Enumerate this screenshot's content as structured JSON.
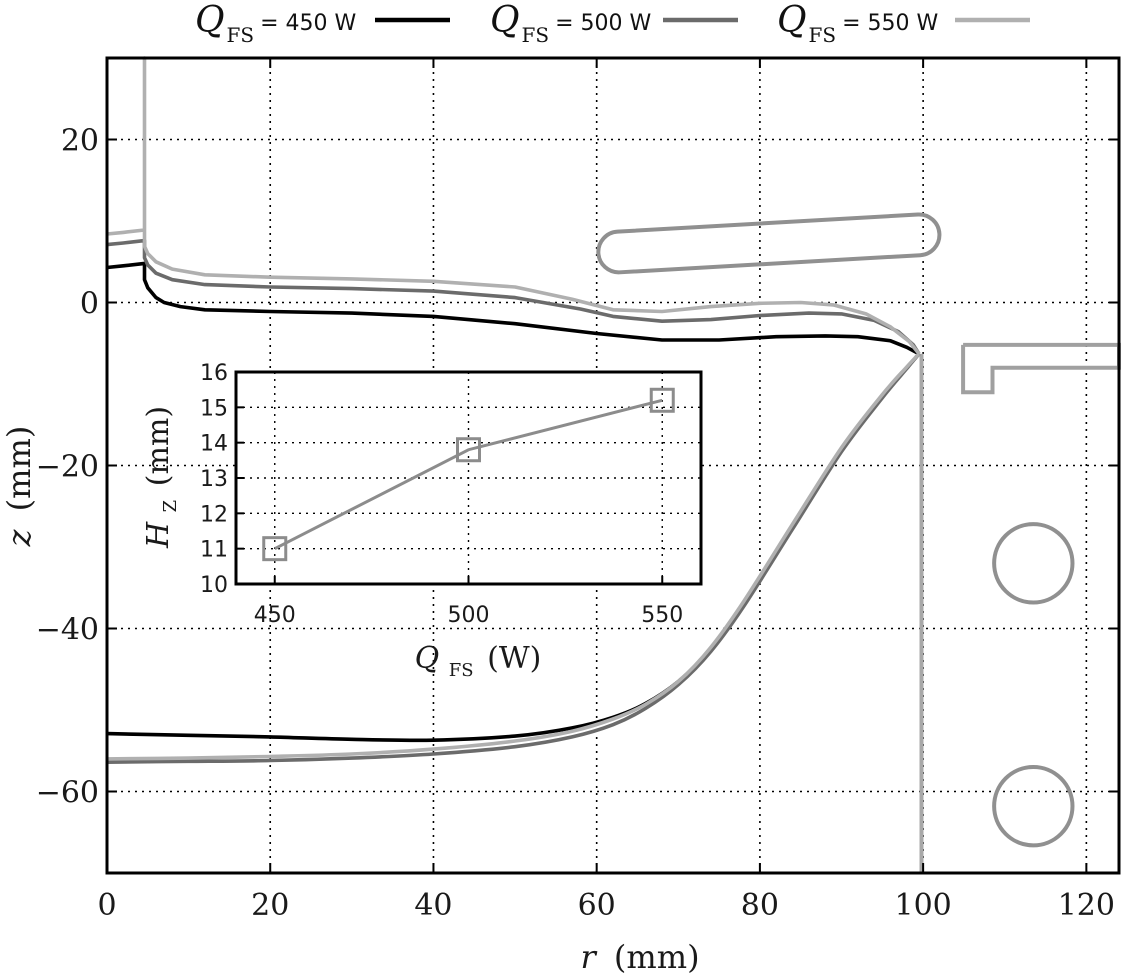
{
  "chart_data": [
    {
      "type": "line",
      "legend_position": "top",
      "xlabel_symbol": "r",
      "xlabel_unit": "(mm)",
      "ylabel_symbol": "z",
      "ylabel_unit": "(mm)",
      "xlim": [
        0,
        124
      ],
      "ylim": [
        -70,
        30
      ],
      "xticks": [
        0,
        20,
        40,
        60,
        80,
        100,
        120
      ],
      "yticks": [
        -60,
        -40,
        -20,
        0,
        20
      ],
      "ytick_labels": [
        "−60",
        "−40",
        "−20",
        "0",
        "20"
      ],
      "grid": true,
      "series": [
        {
          "name": "Q_FS = 450 W",
          "legend_symbol": "Q",
          "legend_subscript": "FS",
          "legend_value": "= 450 W",
          "color": "#000000",
          "free_surface": [
            [
              0,
              4.3
            ],
            [
              2,
              4.5
            ],
            [
              4.6,
              4.8
            ],
            [
              4.6,
              2.8
            ],
            [
              5,
              1.8
            ],
            [
              6,
              0.6
            ],
            [
              7,
              0
            ],
            [
              9,
              -0.5
            ],
            [
              12,
              -0.9
            ],
            [
              20,
              -1.1
            ],
            [
              30,
              -1.3
            ],
            [
              40,
              -1.7
            ],
            [
              50,
              -2.6
            ],
            [
              60,
              -3.8
            ],
            [
              68,
              -4.6
            ],
            [
              75,
              -4.6
            ],
            [
              82,
              -4.2
            ],
            [
              88,
              -4.1
            ],
            [
              92,
              -4.2
            ],
            [
              96,
              -4.7
            ],
            [
              98,
              -5.5
            ],
            [
              99.5,
              -6.3
            ]
          ],
          "interface": [
            [
              0,
              -52.9
            ],
            [
              10,
              -53.1
            ],
            [
              20,
              -53.3
            ],
            [
              30,
              -53.6
            ],
            [
              40,
              -53.7
            ],
            [
              50,
              -53.2
            ],
            [
              57,
              -52.2
            ],
            [
              62,
              -50.9
            ],
            [
              66,
              -49.2
            ],
            [
              70,
              -46.5
            ],
            [
              74,
              -42.5
            ],
            [
              78,
              -37
            ],
            [
              84,
              -27.5
            ],
            [
              90,
              -18
            ],
            [
              95,
              -11.5
            ],
            [
              98,
              -8
            ],
            [
              99.5,
              -6.3
            ]
          ]
        },
        {
          "name": "Q_FS = 500 W",
          "legend_symbol": "Q",
          "legend_subscript": "FS",
          "legend_value": "= 500 W",
          "color": "#6b6b6b",
          "free_surface": [
            [
              0,
              7.1
            ],
            [
              2,
              7.3
            ],
            [
              4.6,
              7.6
            ],
            [
              4.6,
              5.5
            ],
            [
              5,
              4.6
            ],
            [
              6,
              3.6
            ],
            [
              8,
              2.8
            ],
            [
              12,
              2.2
            ],
            [
              20,
              1.9
            ],
            [
              30,
              1.7
            ],
            [
              40,
              1.4
            ],
            [
              50,
              0.6
            ],
            [
              58,
              -0.8
            ],
            [
              62,
              -1.7
            ],
            [
              68,
              -2.3
            ],
            [
              74,
              -2.1
            ],
            [
              80,
              -1.6
            ],
            [
              86,
              -1.3
            ],
            [
              90,
              -1.4
            ],
            [
              94,
              -2.2
            ],
            [
              97,
              -3.6
            ],
            [
              98.8,
              -5.2
            ],
            [
              99.5,
              -6.3
            ]
          ],
          "interface": [
            [
              0,
              -56.4
            ],
            [
              10,
              -56.3
            ],
            [
              20,
              -56.2
            ],
            [
              30,
              -55.9
            ],
            [
              40,
              -55.4
            ],
            [
              50,
              -54.5
            ],
            [
              57,
              -53.3
            ],
            [
              62,
              -51.8
            ],
            [
              66,
              -49.8
            ],
            [
              70,
              -46.9
            ],
            [
              74,
              -42.8
            ],
            [
              78,
              -37.3
            ],
            [
              84,
              -27.8
            ],
            [
              90,
              -18.3
            ],
            [
              95,
              -11.7
            ],
            [
              98,
              -8.1
            ],
            [
              99.5,
              -6.3
            ]
          ]
        },
        {
          "name": "Q_FS = 550 W",
          "legend_symbol": "Q",
          "legend_subscript": "FS",
          "legend_value": "= 550 W",
          "color": "#b0b0b0",
          "free_surface": [
            [
              0,
              8.4
            ],
            [
              2,
              8.6
            ],
            [
              4.6,
              8.9
            ],
            [
              4.6,
              30
            ],
            [
              4.6,
              8.9
            ],
            [
              4.6,
              6.9
            ],
            [
              5,
              6
            ],
            [
              6,
              5
            ],
            [
              8,
              4.1
            ],
            [
              12,
              3.4
            ],
            [
              20,
              3.1
            ],
            [
              30,
              2.9
            ],
            [
              40,
              2.6
            ],
            [
              50,
              1.9
            ],
            [
              57,
              0.4
            ],
            [
              62,
              -0.9
            ],
            [
              68,
              -1.1
            ],
            [
              74,
              -0.5
            ],
            [
              80,
              -0.1
            ],
            [
              85,
              0
            ],
            [
              89,
              -0.3
            ],
            [
              93,
              -1.4
            ],
            [
              96,
              -3
            ],
            [
              98.3,
              -4.8
            ],
            [
              99.5,
              -6.3
            ]
          ],
          "interface": [
            [
              0,
              -56
            ],
            [
              10,
              -55.9
            ],
            [
              20,
              -55.7
            ],
            [
              30,
              -55.4
            ],
            [
              40,
              -54.8
            ],
            [
              50,
              -53.8
            ],
            [
              57,
              -52.6
            ],
            [
              62,
              -51.1
            ],
            [
              66,
              -49.3
            ],
            [
              70,
              -46.5
            ],
            [
              74,
              -42.3
            ],
            [
              78,
              -36.7
            ],
            [
              84,
              -27.2
            ],
            [
              90,
              -17.8
            ],
            [
              95,
              -11.3
            ],
            [
              98,
              -7.9
            ],
            [
              99.5,
              -6.3
            ]
          ]
        }
      ],
      "crucible_wall": [
        [
          99.8,
          -6.3
        ],
        [
          99.8,
          -70
        ]
      ],
      "inductor": {
        "x1": 62.7,
        "y1": 6.2,
        "x2": 99.5,
        "y2": 8.3,
        "radius": 2.5
      },
      "crucible_support": [
        [
          104.9,
          -5.2
        ],
        [
          124,
          -5.2
        ],
        [
          124,
          -8
        ],
        [
          108.5,
          -8
        ],
        [
          108.5,
          -11
        ],
        [
          104.9,
          -11
        ],
        [
          104.9,
          -5.2
        ]
      ],
      "coils": [
        {
          "cx": 113.5,
          "cy": -32,
          "r": 4.8
        },
        {
          "cx": 113.5,
          "cy": -61.8,
          "r": 4.8
        }
      ]
    },
    {
      "type": "line",
      "inset": true,
      "xlabel_symbol": "Q",
      "xlabel_subscript": "FS",
      "xlabel_unit": "(W)",
      "ylabel_symbol": "H",
      "ylabel_subscript": "Z",
      "ylabel_unit": "(mm)",
      "xlim": [
        440,
        560
      ],
      "ylim": [
        10,
        16
      ],
      "xticks": [
        450,
        500,
        550
      ],
      "yticks": [
        10,
        11,
        12,
        13,
        14,
        15,
        16
      ],
      "grid": true,
      "color": "#8c8c8c",
      "marker": "square",
      "x": [
        450,
        500,
        550
      ],
      "values": [
        11.0,
        13.8,
        15.2
      ]
    }
  ]
}
